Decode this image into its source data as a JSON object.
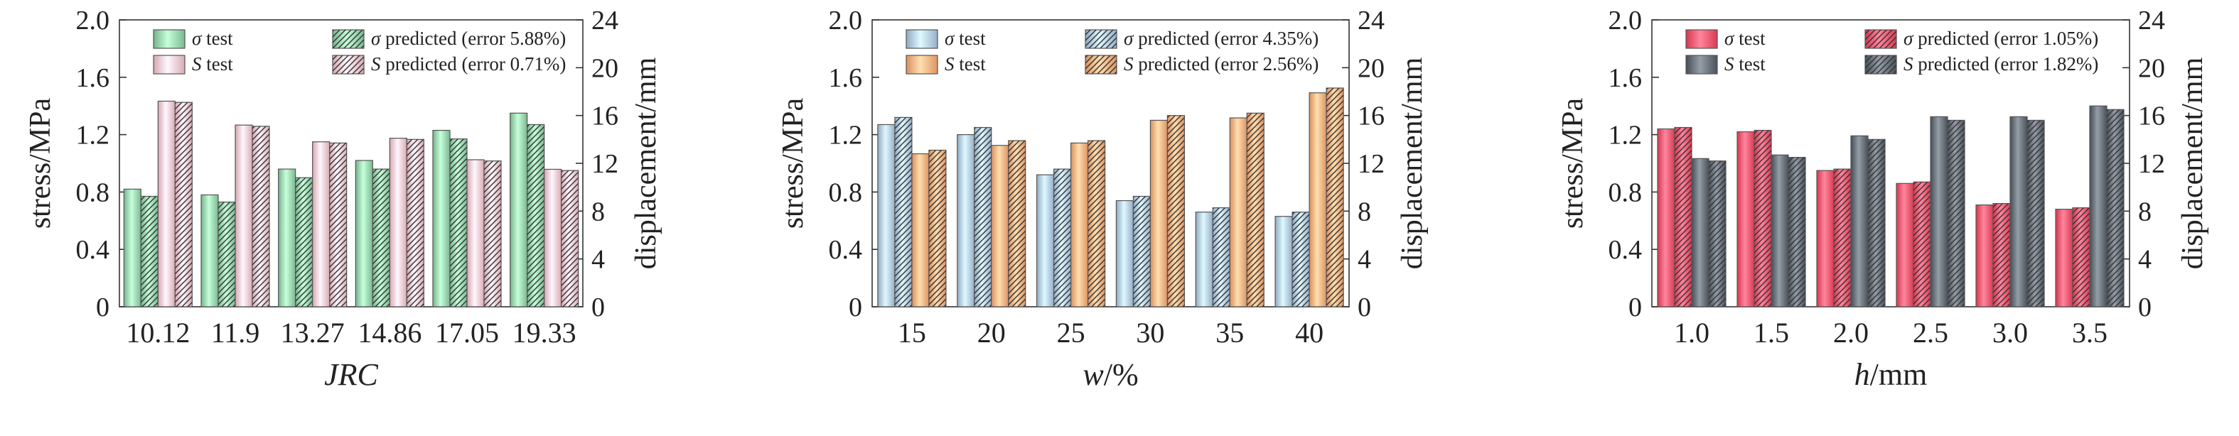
{
  "chart_data": [
    {
      "type": "bar",
      "panel": "a",
      "xlabel": "JRC",
      "ylabel_left": "stress/MPa",
      "ylabel_right": "displacement/mm",
      "categories": [
        "10.12",
        "11.9",
        "13.27",
        "14.86",
        "17.05",
        "19.33"
      ],
      "ylim_left": [
        0,
        2.0
      ],
      "yticks_left": [
        "0",
        "0.4",
        "0.8",
        "1.2",
        "1.6",
        "2.0"
      ],
      "ylim_right": [
        0,
        24
      ],
      "yticks_right": [
        "0",
        "4",
        "8",
        "12",
        "16",
        "20",
        "24"
      ],
      "legend": {
        "sigma_test": "test",
        "sigma_pred": "predicted (error 5.88%)",
        "s_test": "test",
        "s_pred": "predicted (error 0.71%)"
      },
      "colors": {
        "sigma": "#8fcca4",
        "s": "#eec0c8"
      },
      "series": [
        {
          "key": "sigma_test",
          "axis": "left",
          "hatch": false,
          "values": [
            0.82,
            0.78,
            0.96,
            1.02,
            1.23,
            1.35
          ]
        },
        {
          "key": "sigma_pred",
          "axis": "left",
          "hatch": true,
          "values": [
            0.77,
            0.73,
            0.9,
            0.96,
            1.17,
            1.27
          ]
        },
        {
          "key": "s_test",
          "axis": "right",
          "hatch": false,
          "values": [
            17.2,
            15.2,
            13.8,
            14.1,
            12.3,
            11.5
          ]
        },
        {
          "key": "s_pred",
          "axis": "right",
          "hatch": true,
          "values": [
            17.1,
            15.1,
            13.7,
            14.0,
            12.2,
            11.4
          ]
        }
      ]
    },
    {
      "type": "bar",
      "panel": "b",
      "xlabel": "w/%",
      "ylabel_left": "stress/MPa",
      "ylabel_right": "displacement/mm",
      "categories": [
        "15",
        "20",
        "25",
        "30",
        "35",
        "40"
      ],
      "ylim_left": [
        0,
        2.0
      ],
      "yticks_left": [
        "0",
        "0.4",
        "0.8",
        "1.2",
        "1.6",
        "2.0"
      ],
      "ylim_right": [
        0,
        24
      ],
      "yticks_right": [
        "0",
        "4",
        "8",
        "12",
        "16",
        "20",
        "24"
      ],
      "legend": {
        "sigma_test": "test",
        "sigma_pred": "predicted (error 4.35%)",
        "s_test": "test",
        "s_pred": "predicted (error 2.56%)"
      },
      "colors": {
        "sigma": "#a9c2dc",
        "s": "#f2a878"
      },
      "series": [
        {
          "key": "sigma_test",
          "axis": "left",
          "hatch": false,
          "values": [
            1.27,
            1.2,
            0.92,
            0.74,
            0.66,
            0.63
          ]
        },
        {
          "key": "sigma_pred",
          "axis": "left",
          "hatch": true,
          "values": [
            1.32,
            1.25,
            0.96,
            0.77,
            0.69,
            0.66
          ]
        },
        {
          "key": "s_test",
          "axis": "right",
          "hatch": false,
          "values": [
            12.8,
            13.5,
            13.7,
            15.6,
            15.8,
            17.9
          ]
        },
        {
          "key": "s_pred",
          "axis": "right",
          "hatch": true,
          "values": [
            13.1,
            13.9,
            13.9,
            16.0,
            16.2,
            18.3
          ]
        }
      ]
    },
    {
      "type": "bar",
      "panel": "c",
      "xlabel": "h/mm",
      "ylabel_left": "stress/MPa",
      "ylabel_right": "displacement/mm",
      "categories": [
        "1.0",
        "1.5",
        "2.0",
        "2.5",
        "3.0",
        "3.5"
      ],
      "ylim_left": [
        0,
        2.0
      ],
      "yticks_left": [
        "0",
        "0.4",
        "0.8",
        "1.2",
        "1.6",
        "2.0"
      ],
      "ylim_right": [
        0,
        24
      ],
      "yticks_right": [
        "0",
        "4",
        "8",
        "12",
        "16",
        "20",
        "24"
      ],
      "legend": {
        "sigma_test": "test",
        "sigma_pred": "predicted (error 1.05%)",
        "s_test": "test",
        "s_pred": "predicted (error 1.82%)"
      },
      "colors": {
        "sigma": "#ee4f67",
        "s": "#5e6670"
      },
      "series": [
        {
          "key": "sigma_test",
          "axis": "left",
          "hatch": false,
          "values": [
            1.24,
            1.22,
            0.95,
            0.86,
            0.71,
            0.68
          ]
        },
        {
          "key": "sigma_pred",
          "axis": "left",
          "hatch": true,
          "values": [
            1.25,
            1.23,
            0.96,
            0.87,
            0.72,
            0.69
          ]
        },
        {
          "key": "s_test",
          "axis": "right",
          "hatch": false,
          "values": [
            12.4,
            12.7,
            14.3,
            15.9,
            15.9,
            16.8
          ]
        },
        {
          "key": "s_pred",
          "axis": "right",
          "hatch": true,
          "values": [
            12.2,
            12.5,
            14.0,
            15.6,
            15.6,
            16.5
          ]
        }
      ]
    }
  ]
}
